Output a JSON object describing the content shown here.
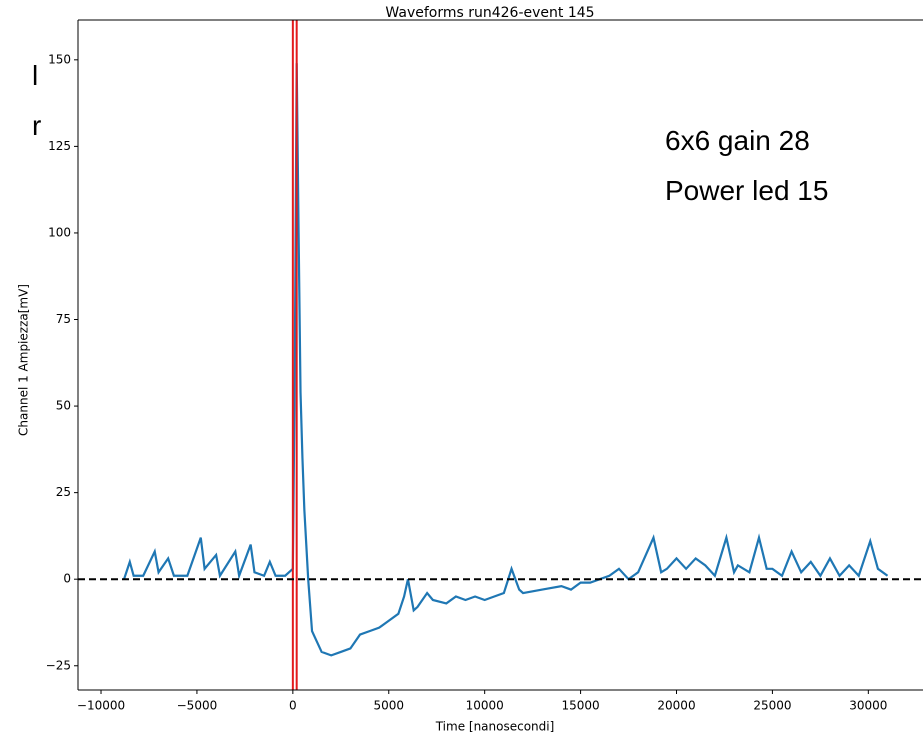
{
  "chart_data": {
    "type": "line",
    "title": "Waveforms run426-event 145",
    "xlabel": "Time [nanosecondi]",
    "ylabel": "Channel 1 Ampiezza[mV]",
    "annotations": [
      "6x6 gain 28",
      "Power led 15"
    ],
    "side_texts": [
      "l",
      "r"
    ],
    "x": [
      -8800,
      -8500,
      -8300,
      -7800,
      -7200,
      -7000,
      -6500,
      -6200,
      -5500,
      -4800,
      -4600,
      -4000,
      -3800,
      -3000,
      -2800,
      -2200,
      -2000,
      -1500,
      -1200,
      -900,
      -400,
      0,
      100,
      200,
      300,
      400,
      500,
      600,
      800,
      1000,
      1500,
      2000,
      2500,
      3000,
      3500,
      4000,
      4500,
      5000,
      5500,
      5800,
      6000,
      6300,
      6500,
      7000,
      7300,
      8000,
      8500,
      9000,
      9500,
      10000,
      10500,
      11000,
      11400,
      11800,
      12000,
      13000,
      14000,
      14500,
      15000,
      15500,
      16000,
      16500,
      17000,
      17500,
      18000,
      18800,
      19200,
      19500,
      20000,
      20500,
      21000,
      21500,
      22000,
      22600,
      23000,
      23200,
      23800,
      24300,
      24700,
      25000,
      25500,
      26000,
      26500,
      27000,
      27500,
      28000,
      28500,
      29000,
      29500,
      30100,
      30500,
      31000
    ],
    "series": [
      {
        "name": "Channel 1",
        "color": "#1f77b4",
        "values": [
          0,
          5,
          1,
          1,
          8,
          2,
          6,
          1,
          1,
          12,
          3,
          7,
          1,
          8,
          1,
          10,
          2,
          1,
          5,
          1,
          1,
          3,
          60,
          149,
          100,
          54,
          35,
          20,
          0,
          -15,
          -21,
          -22,
          -21,
          -20,
          -16,
          -15,
          -14,
          -12,
          -10,
          -5,
          0,
          -9,
          -8,
          -4,
          -6,
          -7,
          -5,
          -6,
          -5,
          -6,
          -5,
          -4,
          3,
          -3,
          -4,
          -3,
          -2,
          -3,
          -1,
          -1,
          0,
          1,
          3,
          0,
          2,
          12,
          2,
          3,
          6,
          3,
          6,
          4,
          1,
          12,
          2,
          4,
          2,
          12,
          3,
          3,
          1,
          8,
          2,
          5,
          1,
          6,
          1,
          4,
          1,
          11,
          3,
          1
        ]
      }
    ],
    "vlines": [
      0,
      200
    ],
    "vline_color": "#e31a1c",
    "hline": 0,
    "xlim": [
      -11200,
      32850
    ],
    "ylim": [
      -32,
      161.5
    ],
    "xticks": [
      {
        "value": -10000,
        "label": "−10000"
      },
      {
        "value": -5000,
        "label": "−5000"
      },
      0,
      5000,
      10000,
      15000,
      20000,
      25000,
      30000
    ],
    "yticks": [
      {
        "value": -25,
        "label": "−25"
      },
      0,
      25,
      50,
      75,
      100,
      125,
      150
    ]
  }
}
